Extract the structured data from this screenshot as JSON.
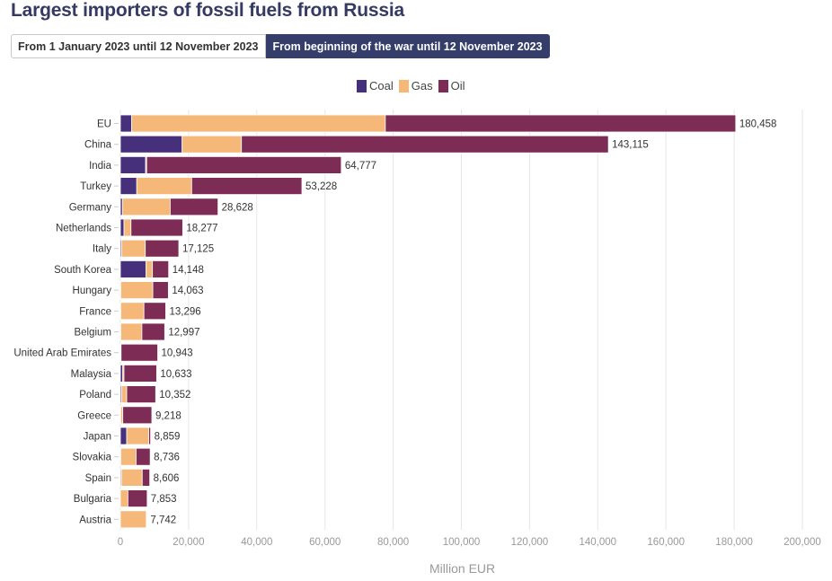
{
  "title": "Largest importers of fossil fuels from Russia",
  "toggle": {
    "options": [
      "From 1 January 2023 until 12 November 2023",
      "From beginning of the war until 12 November 2023"
    ],
    "selected": 1
  },
  "chart_data": {
    "type": "bar",
    "orientation": "horizontal",
    "stacked": true,
    "title": "Largest importers of fossil fuels from Russia",
    "xlabel": "Million EUR",
    "ylabel": "",
    "xlim": [
      0,
      200000
    ],
    "x_ticks": [
      "0",
      "20,000",
      "40,000",
      "60,000",
      "80,000",
      "100,000",
      "120,000",
      "140,000",
      "160,000",
      "180,000",
      "200,000"
    ],
    "grid": true,
    "legend_position": "top-center",
    "categories": [
      "EU",
      "China",
      "India",
      "Turkey",
      "Germany",
      "Netherlands",
      "Italy",
      "South Korea",
      "Hungary",
      "France",
      "Belgium",
      "United Arab Emirates",
      "Malaysia",
      "Poland",
      "Greece",
      "Japan",
      "Slovakia",
      "Spain",
      "Bulgaria",
      "Austria"
    ],
    "series": [
      {
        "name": "Coal",
        "color": "#46307c",
        "values": [
          3300,
          18100,
          7400,
          4800,
          600,
          1050,
          350,
          7500,
          100,
          100,
          100,
          0,
          700,
          350,
          100,
          1850,
          100,
          300,
          0,
          0
        ]
      },
      {
        "name": "Gas",
        "color": "#f6b878",
        "values": [
          74400,
          17400,
          300,
          16100,
          14000,
          2050,
          6950,
          1900,
          9400,
          6800,
          6200,
          200,
          350,
          1500,
          600,
          6450,
          4500,
          6100,
          2200,
          7600
        ]
      },
      {
        "name": "Oil",
        "color": "#7d2c55",
        "values": [
          102758,
          107615,
          57077,
          32328,
          14028,
          15177,
          9825,
          4748,
          4563,
          6396,
          6697,
          10743,
          9583,
          8502,
          8518,
          559,
          4136,
          2206,
          5653,
          142
        ]
      }
    ],
    "totals": [
      180458,
      143115,
      64777,
      53228,
      28628,
      18277,
      17125,
      14148,
      14063,
      13296,
      12997,
      10943,
      10633,
      10352,
      9218,
      8859,
      8736,
      8606,
      7853,
      7742
    ],
    "total_labels": [
      "180,458",
      "143,115",
      "64,777",
      "53,228",
      "28,628",
      "18,277",
      "17,125",
      "14,148",
      "14,063",
      "13,296",
      "12,997",
      "10,943",
      "10,633",
      "10,352",
      "9,218",
      "8,859",
      "8,736",
      "8,606",
      "7,853",
      "7,742"
    ]
  }
}
